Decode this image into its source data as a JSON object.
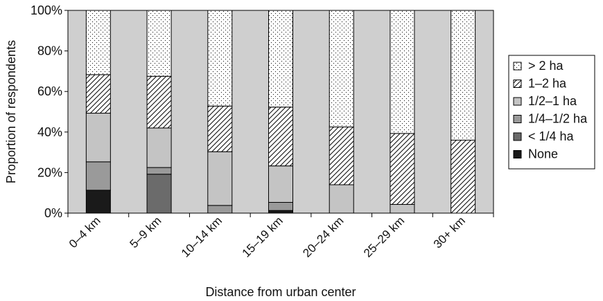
{
  "chart_data": {
    "type": "bar",
    "stacked": true,
    "xlabel": "Distance from urban center",
    "ylabel": "Proportion of respondents",
    "ylim": [
      0,
      100
    ],
    "yticks": [
      "0%",
      "20%",
      "40%",
      "60%",
      "80%",
      "100%"
    ],
    "categories": [
      "0–4 km",
      "5–9 km",
      "10–14 km",
      "15–19 km",
      "20–24 km",
      "25–29 km",
      "30+ km"
    ],
    "grid": false,
    "legend_position": "right",
    "series": [
      {
        "name": "None",
        "key": "none",
        "values": [
          11.3,
          0,
          0,
          1.3,
          0,
          0,
          0
        ]
      },
      {
        "name": "< 1/4 ha",
        "key": "lt_quarter",
        "values": [
          0,
          19.2,
          0,
          0,
          0,
          0,
          0
        ]
      },
      {
        "name": "1/4–1/2 ha",
        "key": "quarter_half",
        "values": [
          14.0,
          3.3,
          3.8,
          4.0,
          0,
          0,
          0
        ]
      },
      {
        "name": "1/2–1 ha",
        "key": "half_one",
        "values": [
          24.0,
          19.5,
          26.5,
          18.0,
          14.0,
          4.3,
          0
        ]
      },
      {
        "name": "1–2 ha",
        "key": "one_two",
        "values": [
          19.0,
          25.5,
          22.5,
          29.0,
          28.5,
          35.0,
          36.0
        ]
      },
      {
        "name": "> 2 ha",
        "key": "gt_two",
        "values": [
          31.7,
          32.5,
          47.2,
          47.7,
          57.5,
          60.7,
          64.0
        ]
      }
    ],
    "legend_order": [
      "gt_two",
      "one_two",
      "half_one",
      "quarter_half",
      "lt_quarter",
      "none"
    ],
    "fills": {
      "none": "#1a1a1a",
      "lt_quarter": "#6b6b6b",
      "quarter_half": "#9a9a9a",
      "half_one": "#c4c4c4",
      "one_two": "hatch",
      "gt_two": "dots"
    },
    "plot_background": "#cfcfcf"
  }
}
